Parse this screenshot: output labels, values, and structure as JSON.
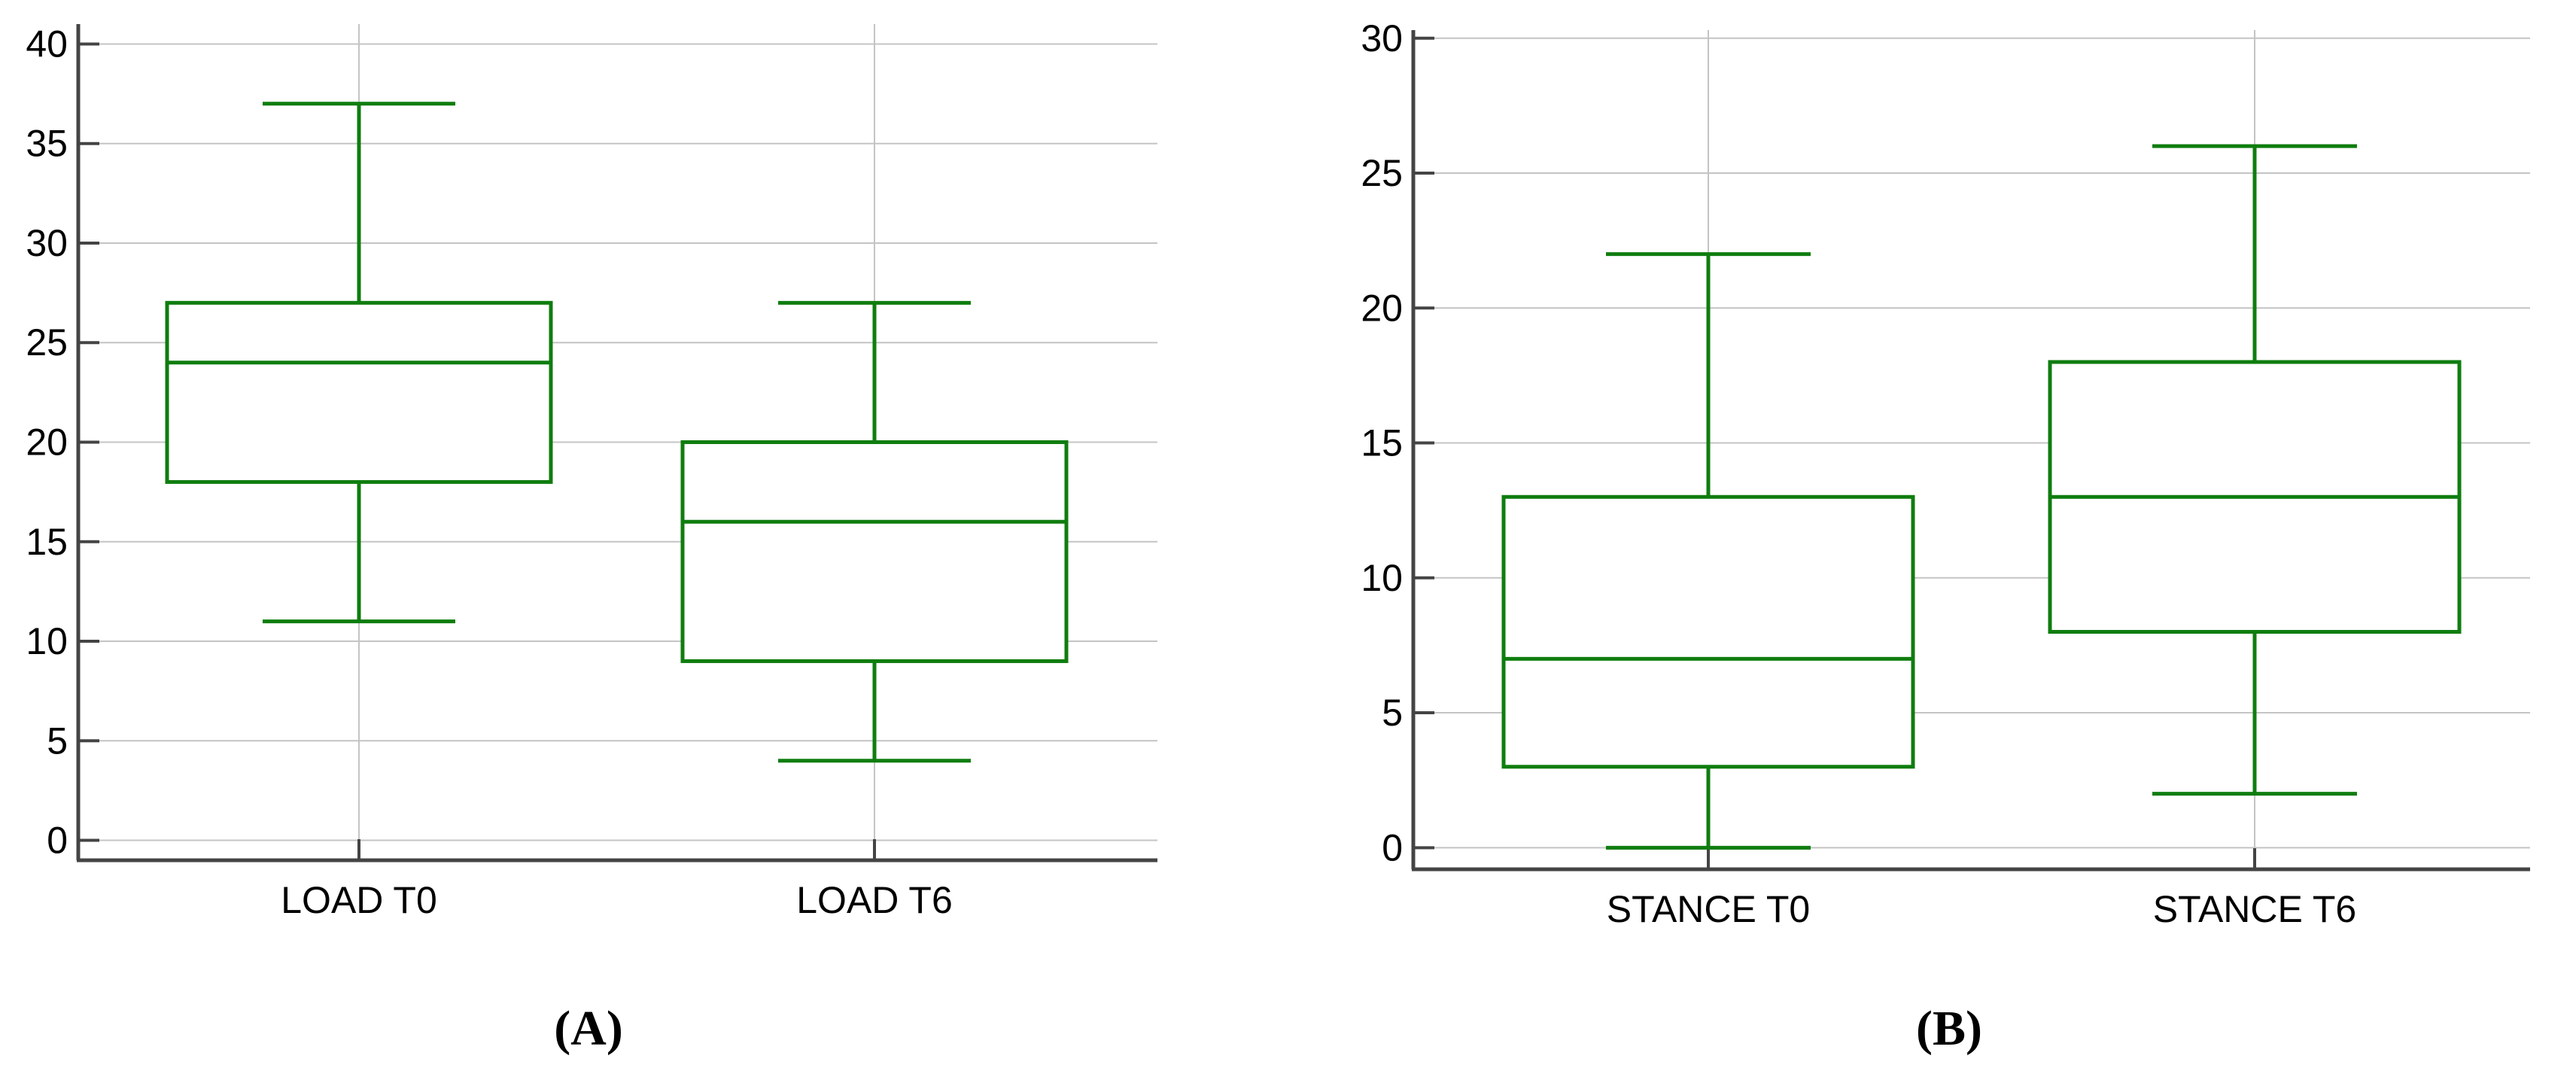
{
  "colors": {
    "box": "#0f7d0f",
    "grid": "#c4c4c4",
    "axis": "#444444",
    "text": "#000000"
  },
  "chart_data": [
    {
      "type": "box",
      "panel_label": "(A)",
      "ylim": [
        -1,
        41
      ],
      "yticks": [
        0,
        5,
        10,
        15,
        20,
        25,
        30,
        35,
        40
      ],
      "ytick_labels": [
        "0",
        "5",
        "10",
        "15",
        "20",
        "25",
        "30",
        "35",
        "40"
      ],
      "categories": [
        "LOAD T0",
        "LOAD T6"
      ],
      "boxes": [
        {
          "category": "LOAD T0",
          "whisker_low": 11,
          "q1": 18,
          "median": 24,
          "q3": 27,
          "whisker_high": 37
        },
        {
          "category": "LOAD T6",
          "whisker_low": 4,
          "q1": 9,
          "median": 16,
          "q3": 20,
          "whisker_high": 27
        }
      ],
      "grid": true
    },
    {
      "type": "box",
      "panel_label": "(B)",
      "ylim": [
        -0.8,
        30.3
      ],
      "yticks": [
        0,
        5,
        10,
        15,
        20,
        25,
        30
      ],
      "ytick_labels": [
        "0",
        "5",
        "10",
        "15",
        "20",
        "25",
        "30"
      ],
      "categories": [
        "STANCE T0",
        "STANCE T6"
      ],
      "boxes": [
        {
          "category": "STANCE T0",
          "whisker_low": 0,
          "q1": 3,
          "median": 7,
          "q3": 13,
          "whisker_high": 22
        },
        {
          "category": "STANCE T6",
          "whisker_low": 2,
          "q1": 8,
          "median": 13,
          "q3": 18,
          "whisker_high": 26
        }
      ],
      "grid": true
    }
  ]
}
